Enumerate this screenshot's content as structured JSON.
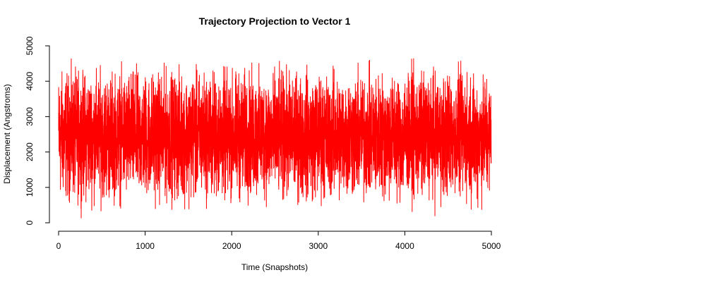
{
  "chart_data": {
    "type": "line",
    "title": "Trajectory Projection to Vector 1",
    "xlabel": "Time (Snapshots)",
    "ylabel": "Displacement (Angstroms)",
    "xlim": [
      0,
      5000
    ],
    "ylim": [
      0,
      5000
    ],
    "x_ticks": [
      0,
      1000,
      2000,
      3000,
      4000,
      5000
    ],
    "x_tick_labels": [
      "0",
      "1000",
      "2000",
      "3000",
      "4000",
      "5000"
    ],
    "y_ticks": [
      0,
      1000,
      2000,
      3000,
      4000,
      5000
    ],
    "y_tick_labels": [
      "0",
      "1000",
      "2000",
      "3000",
      "4000",
      "5000"
    ],
    "grid": false,
    "legend": "none",
    "series": [
      {
        "color": "#ff0000",
        "x_start": 0,
        "x_end": 5000,
        "y_min": 0,
        "y_max": 4900,
        "y_mean": 2450,
        "n_points": 5000
      }
    ]
  }
}
